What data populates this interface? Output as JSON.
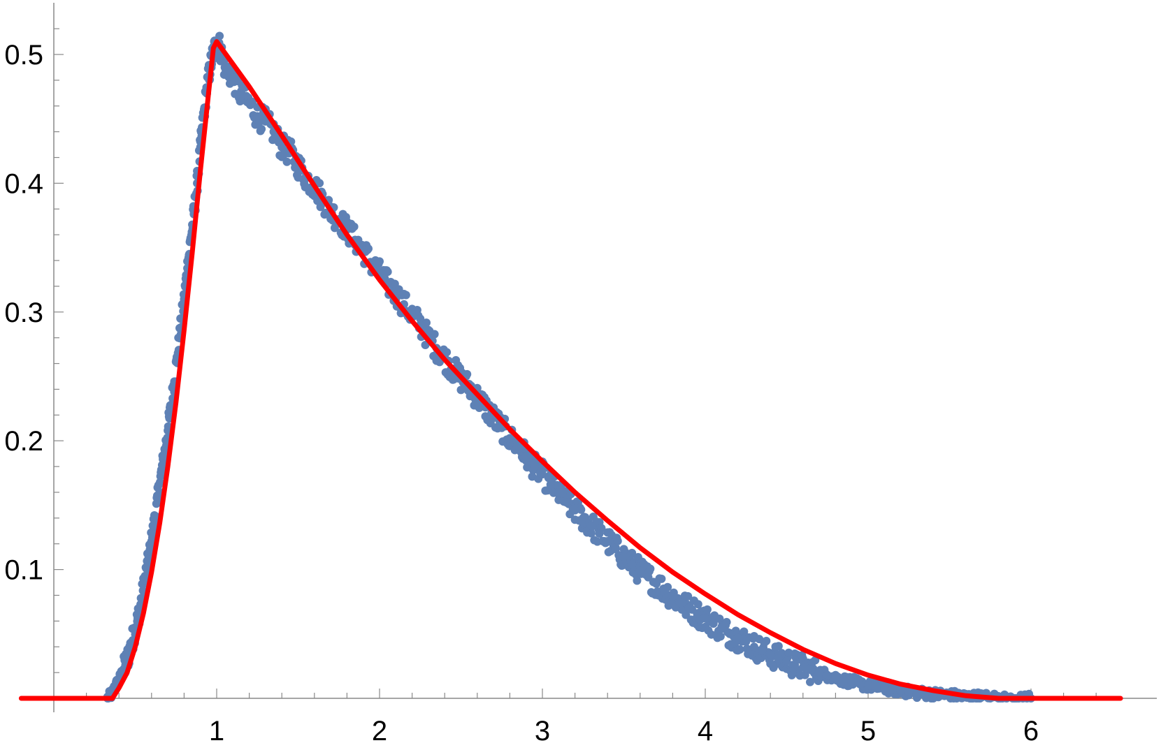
{
  "chart_data": {
    "type": "scatter",
    "title": "",
    "xlabel": "",
    "ylabel": "",
    "xlim": [
      -0.2,
      6.55
    ],
    "ylim": [
      0,
      0.53
    ],
    "x_ticks": [
      {
        "value": 1,
        "label": "1"
      },
      {
        "value": 2,
        "label": "2"
      },
      {
        "value": 3,
        "label": "3"
      },
      {
        "value": 4,
        "label": "4"
      },
      {
        "value": 5,
        "label": "5"
      },
      {
        "value": 6,
        "label": "6"
      }
    ],
    "y_ticks": [
      {
        "value": 0.1,
        "label": "0.1"
      },
      {
        "value": 0.2,
        "label": "0.2"
      },
      {
        "value": 0.3,
        "label": "0.3"
      },
      {
        "value": 0.4,
        "label": "0.4"
      },
      {
        "value": 0.5,
        "label": "0.5"
      }
    ],
    "x_minor_step": 0.2,
    "y_minor_step": 0.02,
    "grid": false,
    "legend": "none",
    "series": [
      {
        "kind": "scatter",
        "color": "#5e81b5",
        "points": [
          [
            0.33,
            0.0
          ],
          [
            0.36,
            0.004
          ],
          [
            0.38,
            0.01
          ],
          [
            0.4,
            0.014
          ],
          [
            0.42,
            0.02
          ],
          [
            0.44,
            0.026
          ],
          [
            0.46,
            0.034
          ],
          [
            0.48,
            0.044
          ],
          [
            0.5,
            0.054
          ],
          [
            0.52,
            0.064
          ],
          [
            0.54,
            0.078
          ],
          [
            0.56,
            0.092
          ],
          [
            0.58,
            0.106
          ],
          [
            0.6,
            0.122
          ],
          [
            0.62,
            0.138
          ],
          [
            0.64,
            0.156
          ],
          [
            0.66,
            0.174
          ],
          [
            0.68,
            0.19
          ],
          [
            0.7,
            0.208
          ],
          [
            0.72,
            0.226
          ],
          [
            0.74,
            0.246
          ],
          [
            0.76,
            0.266
          ],
          [
            0.78,
            0.288
          ],
          [
            0.8,
            0.31
          ],
          [
            0.82,
            0.334
          ],
          [
            0.84,
            0.356
          ],
          [
            0.86,
            0.376
          ],
          [
            0.88,
            0.4
          ],
          [
            0.9,
            0.428
          ],
          [
            0.92,
            0.452
          ],
          [
            0.94,
            0.474
          ],
          [
            0.96,
            0.49
          ],
          [
            0.98,
            0.502
          ],
          [
            1.0,
            0.508
          ],
          [
            1.02,
            0.506
          ],
          [
            1.05,
            0.49
          ],
          [
            1.1,
            0.482
          ],
          [
            1.15,
            0.468
          ],
          [
            1.2,
            0.462
          ],
          [
            1.25,
            0.452
          ],
          [
            1.3,
            0.448
          ],
          [
            1.35,
            0.44
          ],
          [
            1.4,
            0.428
          ],
          [
            1.45,
            0.424
          ],
          [
            1.5,
            0.414
          ],
          [
            1.55,
            0.404
          ],
          [
            1.6,
            0.398
          ],
          [
            1.65,
            0.388
          ],
          [
            1.7,
            0.378
          ],
          [
            1.75,
            0.372
          ],
          [
            1.8,
            0.364
          ],
          [
            1.85,
            0.356
          ],
          [
            1.9,
            0.348
          ],
          [
            1.95,
            0.338
          ],
          [
            2.0,
            0.33
          ],
          [
            2.05,
            0.322
          ],
          [
            2.1,
            0.314
          ],
          [
            2.15,
            0.306
          ],
          [
            2.2,
            0.298
          ],
          [
            2.25,
            0.29
          ],
          [
            2.3,
            0.28
          ],
          [
            2.35,
            0.272
          ],
          [
            2.4,
            0.264
          ],
          [
            2.45,
            0.256
          ],
          [
            2.5,
            0.248
          ],
          [
            2.55,
            0.242
          ],
          [
            2.6,
            0.234
          ],
          [
            2.65,
            0.226
          ],
          [
            2.7,
            0.218
          ],
          [
            2.75,
            0.21
          ],
          [
            2.8,
            0.202
          ],
          [
            2.85,
            0.196
          ],
          [
            2.9,
            0.188
          ],
          [
            2.95,
            0.18
          ],
          [
            3.0,
            0.174
          ],
          [
            3.05,
            0.166
          ],
          [
            3.1,
            0.16
          ],
          [
            3.15,
            0.152
          ],
          [
            3.2,
            0.146
          ],
          [
            3.25,
            0.14
          ],
          [
            3.3,
            0.134
          ],
          [
            3.35,
            0.128
          ],
          [
            3.4,
            0.122
          ],
          [
            3.45,
            0.116
          ],
          [
            3.5,
            0.11
          ],
          [
            3.55,
            0.104
          ],
          [
            3.6,
            0.099
          ],
          [
            3.65,
            0.094
          ],
          [
            3.7,
            0.089
          ],
          [
            3.75,
            0.084
          ],
          [
            3.8,
            0.079
          ],
          [
            3.85,
            0.074
          ],
          [
            3.9,
            0.07
          ],
          [
            3.95,
            0.066
          ],
          [
            4.0,
            0.062
          ],
          [
            4.05,
            0.058
          ],
          [
            4.1,
            0.054
          ],
          [
            4.15,
            0.05
          ],
          [
            4.2,
            0.047
          ],
          [
            4.25,
            0.044
          ],
          [
            4.3,
            0.04
          ],
          [
            4.35,
            0.037
          ],
          [
            4.4,
            0.034
          ],
          [
            4.45,
            0.031
          ],
          [
            4.5,
            0.029
          ],
          [
            4.55,
            0.026
          ],
          [
            4.6,
            0.024
          ],
          [
            4.65,
            0.022
          ],
          [
            4.7,
            0.02
          ],
          [
            4.75,
            0.018
          ],
          [
            4.8,
            0.016
          ],
          [
            4.85,
            0.014
          ],
          [
            4.9,
            0.013
          ],
          [
            4.95,
            0.011
          ],
          [
            5.0,
            0.01
          ],
          [
            5.05,
            0.009
          ],
          [
            5.1,
            0.008
          ],
          [
            5.15,
            0.007
          ],
          [
            5.2,
            0.006
          ],
          [
            5.25,
            0.005
          ],
          [
            5.3,
            0.004
          ],
          [
            5.35,
            0.004
          ],
          [
            5.4,
            0.003
          ],
          [
            5.45,
            0.003
          ],
          [
            5.5,
            0.002
          ],
          [
            5.55,
            0.002
          ],
          [
            5.6,
            0.001
          ],
          [
            5.65,
            0.001
          ],
          [
            5.7,
            0.001
          ],
          [
            5.8,
            0.0
          ],
          [
            5.9,
            0.0
          ],
          [
            6.0,
            0.0
          ]
        ]
      },
      {
        "kind": "line",
        "color": "#ff0000",
        "points": [
          [
            -0.2,
            0.0
          ],
          [
            0.0,
            0.0
          ],
          [
            0.2,
            0.0
          ],
          [
            0.36,
            0.0
          ],
          [
            0.4,
            0.008
          ],
          [
            0.45,
            0.02
          ],
          [
            0.5,
            0.04
          ],
          [
            0.55,
            0.066
          ],
          [
            0.6,
            0.098
          ],
          [
            0.65,
            0.136
          ],
          [
            0.7,
            0.18
          ],
          [
            0.75,
            0.23
          ],
          [
            0.8,
            0.286
          ],
          [
            0.85,
            0.346
          ],
          [
            0.9,
            0.41
          ],
          [
            0.95,
            0.47
          ],
          [
            0.98,
            0.505
          ],
          [
            1.0,
            0.51
          ],
          [
            1.2,
            0.475
          ],
          [
            1.4,
            0.437
          ],
          [
            1.6,
            0.398
          ],
          [
            1.8,
            0.36
          ],
          [
            2.0,
            0.325
          ],
          [
            2.2,
            0.293
          ],
          [
            2.4,
            0.263
          ],
          [
            2.6,
            0.236
          ],
          [
            2.8,
            0.209
          ],
          [
            3.0,
            0.184
          ],
          [
            3.2,
            0.16
          ],
          [
            3.4,
            0.138
          ],
          [
            3.6,
            0.117
          ],
          [
            3.8,
            0.098
          ],
          [
            4.0,
            0.081
          ],
          [
            4.2,
            0.065
          ],
          [
            4.4,
            0.051
          ],
          [
            4.6,
            0.038
          ],
          [
            4.8,
            0.027
          ],
          [
            5.0,
            0.018
          ],
          [
            5.2,
            0.011
          ],
          [
            5.4,
            0.006
          ],
          [
            5.6,
            0.002
          ],
          [
            5.8,
            0.0
          ],
          [
            6.0,
            0.0
          ],
          [
            6.55,
            0.0
          ]
        ]
      }
    ]
  }
}
